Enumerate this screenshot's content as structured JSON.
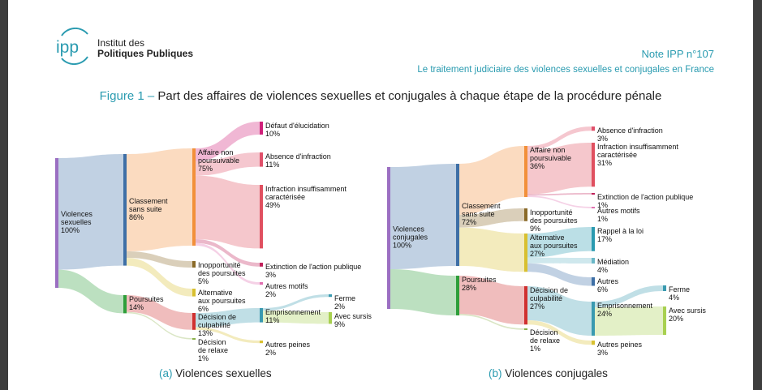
{
  "header": {
    "logo_mark": "ipp",
    "institute_line1": "Institut des",
    "institute_line2": "Politiques Publiques",
    "note_title": "Note IPP n°107",
    "note_subtitle": "Le traitement judiciaire des violences sexuelles et conjugales en France"
  },
  "figure": {
    "number": "Figure 1 –",
    "title": "Part des affaires de violences sexuelles et conjugales à chaque étape de la procédure pénale"
  },
  "chart_data": [
    {
      "type": "sankey",
      "panel": "(a)",
      "caption": "Violences sexuelles",
      "nodes": [
        {
          "id": "root",
          "label": "Violences\nsexuelles",
          "value_label": "100%",
          "value": 100,
          "color": "#9b6fc2"
        },
        {
          "id": "cls",
          "label": "Classement\nsans suite",
          "value_label": "86%",
          "value": 86,
          "color": "#3e6fa6"
        },
        {
          "id": "pours",
          "label": "Poursuites",
          "value_label": "14%",
          "value": 14,
          "color": "#2e9e3a"
        },
        {
          "id": "anp",
          "label": "Affaire non\npoursuivable",
          "value_label": "75%",
          "value": 75,
          "color": "#f2903a"
        },
        {
          "id": "inop",
          "label": "Inopportunité\ndes poursuites",
          "value_label": "5%",
          "value": 5,
          "color": "#8a6a28"
        },
        {
          "id": "alt",
          "label": "Alternative\naux poursuites",
          "value_label": "6%",
          "value": 6,
          "color": "#d8c030"
        },
        {
          "id": "dec",
          "label": "Décision de\nculpabilité",
          "value_label": "13%",
          "value": 13,
          "color": "#d03030"
        },
        {
          "id": "rel",
          "label": "Décision\nde relaxe",
          "value_label": "1%",
          "value": 1,
          "color": "#8ab04a"
        },
        {
          "id": "def",
          "label": "Défaut d'élucidation",
          "value_label": "10%",
          "value": 10,
          "color": "#d01f7a"
        },
        {
          "id": "abs",
          "label": "Absence d'infraction",
          "value_label": "11%",
          "value": 11,
          "color": "#e0506a"
        },
        {
          "id": "ins",
          "label": "Infraction insuffisamment\ncaractérisée",
          "value_label": "49%",
          "value": 49,
          "color": "#e05060"
        },
        {
          "id": "ext",
          "label": "Extinction de l'action publique",
          "value_label": "3%",
          "value": 3,
          "color": "#c0205a"
        },
        {
          "id": "aut",
          "label": "Autres motifs",
          "value_label": "2%",
          "value": 2,
          "color": "#e070b0"
        },
        {
          "id": "emp",
          "label": "Emprisonnement",
          "value_label": "11%",
          "value": 11,
          "color": "#3a9ab0"
        },
        {
          "id": "autp",
          "label": "Autres peines",
          "value_label": "2%",
          "value": 2,
          "color": "#d8c030"
        },
        {
          "id": "fer",
          "label": "Ferme",
          "value_label": "2%",
          "value": 2,
          "color": "#3a9ab0"
        },
        {
          "id": "sur",
          "label": "Avec sursis",
          "value_label": "9%",
          "value": 9,
          "color": "#a8d050"
        }
      ],
      "links": [
        {
          "source": "root",
          "target": "cls",
          "value": 86
        },
        {
          "source": "root",
          "target": "pours",
          "value": 14
        },
        {
          "source": "cls",
          "target": "anp",
          "value": 75
        },
        {
          "source": "cls",
          "target": "inop",
          "value": 5
        },
        {
          "source": "cls",
          "target": "alt",
          "value": 6
        },
        {
          "source": "pours",
          "target": "dec",
          "value": 13
        },
        {
          "source": "pours",
          "target": "rel",
          "value": 1
        },
        {
          "source": "anp",
          "target": "def",
          "value": 10
        },
        {
          "source": "anp",
          "target": "abs",
          "value": 11
        },
        {
          "source": "anp",
          "target": "ins",
          "value": 49
        },
        {
          "source": "anp",
          "target": "ext",
          "value": 3
        },
        {
          "source": "anp",
          "target": "aut",
          "value": 2
        },
        {
          "source": "dec",
          "target": "emp",
          "value": 11
        },
        {
          "source": "dec",
          "target": "autp",
          "value": 2
        },
        {
          "source": "emp",
          "target": "fer",
          "value": 2
        },
        {
          "source": "emp",
          "target": "sur",
          "value": 9
        }
      ]
    },
    {
      "type": "sankey",
      "panel": "(b)",
      "caption": "Violences conjugales",
      "nodes": [
        {
          "id": "root",
          "label": "Violences\nconjugales",
          "value_label": "100%",
          "value": 100,
          "color": "#9b6fc2"
        },
        {
          "id": "cls",
          "label": "Classement\nsans suite",
          "value_label": "72%",
          "value": 72,
          "color": "#3e6fa6"
        },
        {
          "id": "pours",
          "label": "Poursuites",
          "value_label": "28%",
          "value": 28,
          "color": "#2e9e3a"
        },
        {
          "id": "anp",
          "label": "Affaire non\npoursuivable",
          "value_label": "36%",
          "value": 36,
          "color": "#f2903a"
        },
        {
          "id": "inop",
          "label": "Inopportunité\ndes poursuites",
          "value_label": "9%",
          "value": 9,
          "color": "#8a6a28"
        },
        {
          "id": "alt",
          "label": "Alternative\naux poursuites",
          "value_label": "27%",
          "value": 27,
          "color": "#d8c030"
        },
        {
          "id": "dec",
          "label": "Décision de\nculpabilité",
          "value_label": "27%",
          "value": 27,
          "color": "#d03030"
        },
        {
          "id": "rel",
          "label": "Décision\nde relaxe",
          "value_label": "1%",
          "value": 1,
          "color": "#8ab04a"
        },
        {
          "id": "abs",
          "label": "Absence d'infraction",
          "value_label": "3%",
          "value": 3,
          "color": "#e0506a"
        },
        {
          "id": "ins",
          "label": "Infraction insuffisamment\ncaractérisée",
          "value_label": "31%",
          "value": 31,
          "color": "#e05060"
        },
        {
          "id": "ext",
          "label": "Extinction de l'action publique",
          "value_label": "1%",
          "value": 1,
          "color": "#c0205a"
        },
        {
          "id": "aut",
          "label": "Autres motifs",
          "value_label": "1%",
          "value": 1,
          "color": "#e070b0"
        },
        {
          "id": "rap",
          "label": "Rappel à la loi",
          "value_label": "17%",
          "value": 17,
          "color": "#2a9ab0"
        },
        {
          "id": "med",
          "label": "Médiation",
          "value_label": "4%",
          "value": 4,
          "color": "#6ab8c8"
        },
        {
          "id": "autr",
          "label": "Autres",
          "value_label": "6%",
          "value": 6,
          "color": "#3e6fa6"
        },
        {
          "id": "emp",
          "label": "Emprisonnement",
          "value_label": "24%",
          "value": 24,
          "color": "#3a9ab0"
        },
        {
          "id": "autp",
          "label": "Autres peines",
          "value_label": "3%",
          "value": 3,
          "color": "#d8c030"
        },
        {
          "id": "fer",
          "label": "Ferme",
          "value_label": "4%",
          "value": 4,
          "color": "#3a9ab0"
        },
        {
          "id": "sur",
          "label": "Avec sursis",
          "value_label": "20%",
          "value": 20,
          "color": "#a8d050"
        }
      ],
      "links": [
        {
          "source": "root",
          "target": "cls",
          "value": 72
        },
        {
          "source": "root",
          "target": "pours",
          "value": 28
        },
        {
          "source": "cls",
          "target": "anp",
          "value": 36
        },
        {
          "source": "cls",
          "target": "inop",
          "value": 9
        },
        {
          "source": "cls",
          "target": "alt",
          "value": 27
        },
        {
          "source": "pours",
          "target": "dec",
          "value": 27
        },
        {
          "source": "pours",
          "target": "rel",
          "value": 1
        },
        {
          "source": "anp",
          "target": "abs",
          "value": 3
        },
        {
          "source": "anp",
          "target": "ins",
          "value": 31
        },
        {
          "source": "anp",
          "target": "ext",
          "value": 1
        },
        {
          "source": "anp",
          "target": "aut",
          "value": 1
        },
        {
          "source": "alt",
          "target": "rap",
          "value": 17
        },
        {
          "source": "alt",
          "target": "med",
          "value": 4
        },
        {
          "source": "alt",
          "target": "autr",
          "value": 6
        },
        {
          "source": "dec",
          "target": "emp",
          "value": 24
        },
        {
          "source": "dec",
          "target": "autp",
          "value": 3
        },
        {
          "source": "emp",
          "target": "fer",
          "value": 4
        },
        {
          "source": "emp",
          "target": "sur",
          "value": 20
        }
      ]
    }
  ]
}
